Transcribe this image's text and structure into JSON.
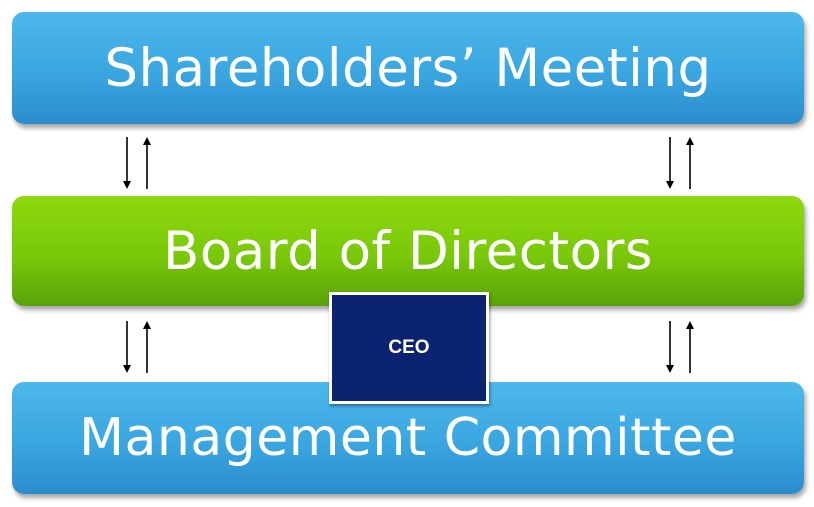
{
  "diagram": {
    "top_box": {
      "label": "Shareholders’ Meeting",
      "color": "#3aa6e0"
    },
    "middle_box": {
      "label": "Board of Directors",
      "color": "#79c80a"
    },
    "bottom_box": {
      "label": "Management Committee",
      "color": "#3aa6e0"
    },
    "ceo_box": {
      "label": "CEO",
      "color": "#0c2470"
    },
    "connectors": [
      {
        "between": "top-middle",
        "icon": "bidirectional-arrow-icon"
      },
      {
        "between": "top-middle",
        "icon": "bidirectional-arrow-icon"
      },
      {
        "between": "middle-bottom",
        "icon": "bidirectional-arrow-icon"
      },
      {
        "between": "middle-bottom",
        "icon": "bidirectional-arrow-icon"
      }
    ]
  }
}
